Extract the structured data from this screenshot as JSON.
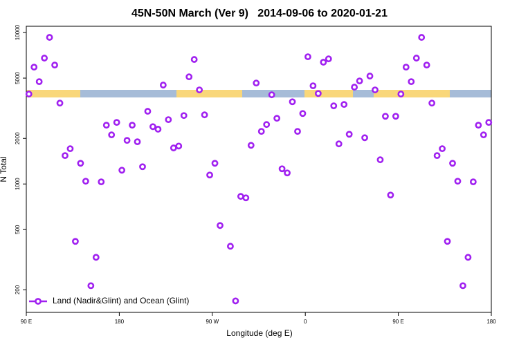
{
  "chart_data": {
    "type": "scatter",
    "title": "45N-50N March (Ver 9)   2014-09-06 to 2020-01-21",
    "x_label": "Longitude (deg E)",
    "y_label": "N Total",
    "x": [
      92.5,
      97.5,
      102.5,
      107.5,
      112.5,
      117.5,
      122.5,
      127.5,
      132.5,
      137.5,
      142.5,
      147.5,
      152.5,
      157.5,
      162.5,
      167.5,
      172.5,
      177.5,
      182.5,
      187.5,
      192.5,
      197.5,
      202.5,
      207.5,
      212.5,
      217.5,
      222.5,
      227.5,
      232.5,
      237.5,
      242.5,
      247.5,
      252.5,
      257.5,
      262.5,
      267.5,
      272.5,
      277.5,
      287.5,
      292.5,
      297.5,
      302.5,
      307.5,
      312.5,
      317.5,
      322.5,
      327.5,
      332.5,
      337.5,
      342.5,
      347.5,
      352.5,
      357.5,
      362.5,
      367.5,
      372.5,
      377.5,
      382.5,
      387.5,
      392.5,
      397.5,
      402.5,
      407.5,
      412.5,
      417.5,
      422.5,
      427.5,
      432.5,
      437.5,
      442.5,
      447.5,
      452.5,
      457.5,
      462.5,
      467.5,
      472.5,
      477.5,
      482.5,
      487.5,
      492.5,
      497.5,
      502.5,
      507.5,
      512.5,
      517.5,
      522.5,
      527.5,
      532.5,
      537.5
    ],
    "series": [
      {
        "name": "Land (Nadir&Glint) and Ocean (Glint)",
        "color": "#a020f0",
        "values": [
          3925,
          5910,
          4740,
          6780,
          9290,
          6100,
          3420,
          1540,
          1710,
          418,
          1370,
          1043,
          213,
          328,
          1033,
          2445,
          2110,
          2550,
          1233,
          1940,
          2445,
          1900,
          1300,
          3020,
          2390,
          2300,
          4500,
          2660,
          1730,
          1780,
          2830,
          5100,
          6640,
          4180,
          2860,
          1146,
          1370,
          532,
          388,
          169,
          828,
          810,
          1800,
          4640,
          2225,
          2470,
          3880,
          2715,
          1260,
          1183,
          3490,
          2225,
          2920,
          6920,
          4450,
          3960,
          6370,
          6700,
          3280,
          1840,
          3350,
          2130,
          4360,
          4790,
          2020,
          5160,
          4180,
          1445,
          2800,
          845,
          2800,
          3925,
          5910,
          4740,
          6780,
          9290,
          6100,
          3420,
          1540,
          1710,
          418,
          1370,
          1043,
          213,
          328,
          1033,
          2445,
          2110,
          2550
        ]
      }
    ],
    "xlim": [
      90,
      540
    ],
    "xticks": [
      {
        "value": 90,
        "label": "90 E"
      },
      {
        "value": 180,
        "label": "180"
      },
      {
        "value": 270,
        "label": "90 W"
      },
      {
        "value": 360,
        "label": "0"
      },
      {
        "value": 450,
        "label": "90 E"
      },
      {
        "value": 540,
        "label": "180"
      }
    ],
    "ylim": [
      142,
      11000
    ],
    "yticks": [
      200,
      500,
      1000,
      2000,
      5000,
      10000
    ],
    "log_y": true,
    "legend": "bottom-left"
  }
}
